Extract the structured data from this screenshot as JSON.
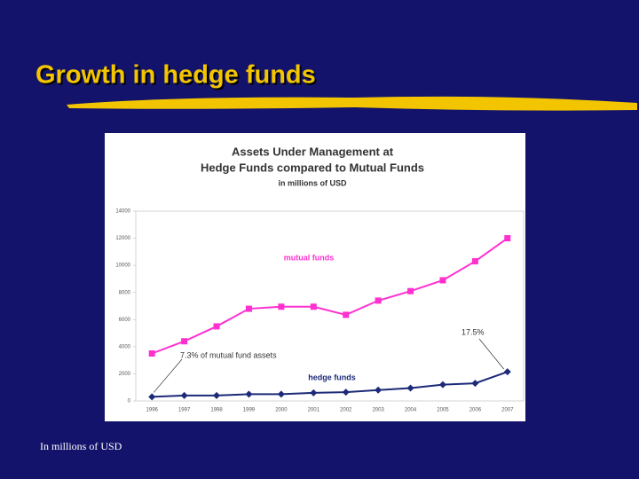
{
  "slide": {
    "title": "Growth in hedge funds",
    "footer": "In millions of USD"
  },
  "chart_data": {
    "type": "line",
    "title": [
      "Assets Under Management at",
      "Hedge Funds compared to Mutual Funds"
    ],
    "subtitle": "in millions of USD",
    "categories": [
      "1996",
      "1997",
      "1998",
      "1999",
      "2000",
      "2001",
      "2002",
      "2003",
      "2004",
      "2005",
      "2006",
      "2007"
    ],
    "series": [
      {
        "name": "mutual funds",
        "color": "#ff2fd0",
        "marker": "square",
        "values": [
          3500,
          4400,
          5500,
          6800,
          6950,
          6950,
          6350,
          7400,
          8100,
          8900,
          10300,
          12000
        ]
      },
      {
        "name": "hedge funds",
        "color": "#1c2a78",
        "marker": "diamond",
        "values": [
          300,
          400,
          400,
          500,
          500,
          600,
          650,
          800,
          950,
          1200,
          1300,
          2150
        ]
      }
    ],
    "annotations": [
      "7.3% of mutual fund assets",
      "17.5%"
    ],
    "ylim": [
      0,
      14000
    ],
    "yticks": [
      0,
      2000,
      4000,
      6000,
      8000,
      10000,
      12000,
      14000
    ],
    "grid": false
  }
}
